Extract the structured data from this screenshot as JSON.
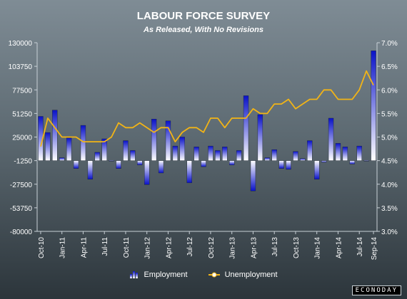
{
  "chart_data": {
    "type": "bar+line",
    "title": "LABOUR FORCE SURVEY",
    "subtitle": "As Released, With No Revisions",
    "categories": [
      "Oct-10",
      "Nov-10",
      "Dec-10",
      "Jan-11",
      "Feb-11",
      "Mar-11",
      "Apr-11",
      "May-11",
      "Jun-11",
      "Jul-11",
      "Aug-11",
      "Sep-11",
      "Oct-11",
      "Nov-11",
      "Dec-11",
      "Jan-12",
      "Feb-12",
      "Mar-12",
      "Apr-12",
      "May-12",
      "Jun-12",
      "Jul-12",
      "Aug-12",
      "Sep-12",
      "Oct-12",
      "Nov-12",
      "Dec-12",
      "Jan-13",
      "Feb-13",
      "Mar-13",
      "Apr-13",
      "May-13",
      "Jun-13",
      "Jul-13",
      "Aug-13",
      "Sep-13",
      "Oct-13",
      "Nov-13",
      "Dec-13",
      "Jan-14",
      "Feb-14",
      "Mar-14",
      "Apr-14",
      "May-14",
      "Jun-14",
      "Jul-14",
      "Aug-14",
      "Sep-14"
    ],
    "x_tick_labels": [
      "Oct-10",
      "Jan-11",
      "Apr-11",
      "Jul-11",
      "Oct-11",
      "Jan-12",
      "Apr-12",
      "Jul-12",
      "Oct-12",
      "Jan-13",
      "Apr-13",
      "Jul-13",
      "Oct-13",
      "Jan-14",
      "Apr-14",
      "Jul-14",
      "Sep-14"
    ],
    "series": [
      {
        "name": "Employment",
        "type": "bar",
        "axis": "left",
        "values": [
          48000,
          30000,
          55000,
          2000,
          24000,
          -10000,
          38000,
          -22000,
          8000,
          23000,
          -1000,
          -10000,
          21000,
          10000,
          -6000,
          -28000,
          45000,
          -15000,
          43000,
          15000,
          25000,
          -26000,
          14000,
          -8000,
          15000,
          10000,
          14000,
          -6000,
          10000,
          71000,
          -35000,
          50000,
          2000,
          11000,
          -10000,
          -11000,
          9000,
          1000,
          21000,
          -22000,
          -3000,
          46000,
          18000,
          14000,
          -5000,
          15000,
          -1000,
          121000
        ]
      },
      {
        "name": "Unemployment",
        "type": "line",
        "axis": "right",
        "values": [
          4.8,
          5.4,
          5.2,
          5.0,
          5.0,
          5.0,
          4.9,
          4.9,
          4.9,
          4.9,
          5.0,
          5.3,
          5.2,
          5.2,
          5.3,
          5.2,
          5.1,
          5.2,
          5.2,
          4.9,
          5.1,
          5.2,
          5.2,
          5.1,
          5.4,
          5.4,
          5.2,
          5.4,
          5.4,
          5.4,
          5.6,
          5.5,
          5.5,
          5.7,
          5.7,
          5.8,
          5.6,
          5.7,
          5.8,
          5.8,
          6.0,
          6.0,
          5.8,
          5.8,
          5.8,
          6.0,
          6.4,
          6.1
        ]
      }
    ],
    "y_left": {
      "ticks": [
        130000,
        103750,
        77500,
        51250,
        25000,
        -1250,
        -27500,
        -53750,
        -80000
      ],
      "ylim": [
        -80000,
        130000
      ]
    },
    "y_right": {
      "ticks": [
        "7.0%",
        "6.5%",
        "6.0%",
        "5.5%",
        "5.0%",
        "4.5%",
        "4.0%",
        "3.5%",
        "3.0%"
      ],
      "ylim": [
        3.0,
        7.0
      ]
    },
    "grid": false,
    "legend": "bottom"
  },
  "colors": {
    "bar_top": "#0a12c8",
    "bar_bottom": "#ffffff",
    "line": "#f2b416",
    "text": "#ffffff",
    "axis": "#c8d0d6"
  },
  "branding": {
    "label": "ECONODAY"
  }
}
